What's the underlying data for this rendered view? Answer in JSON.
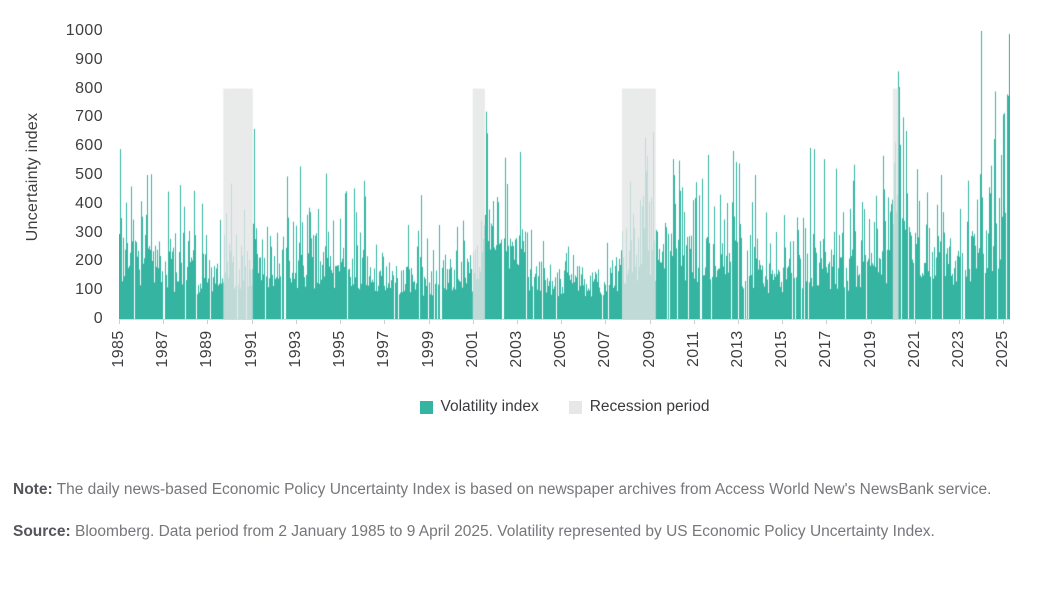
{
  "colors": {
    "series": "#35b4a1",
    "recession_overlay": "rgba(228,229,229,0.8)",
    "recession_swatch": "#e6e7e7",
    "axis_text": "#3e3f42",
    "axis_line": "#d9d9d9",
    "tick_mark": "#cfcfcf",
    "note_text": "#76777b",
    "note_label_color": "#54555a",
    "background": "#ffffff"
  },
  "chart_data": {
    "type": "bar",
    "title": "",
    "description": "Daily news-based US Economic Policy Uncertainty Index, 2 January 1985 to 9 April 2025, rendered as dense 1px vertical bars with recession periods shaded to 800",
    "ylabel": "Uncertainty index",
    "xlabel": "",
    "ylim": [
      0,
      1000
    ],
    "y_ticks": [
      1000,
      900,
      800,
      700,
      600,
      500,
      400,
      300,
      200,
      100,
      0
    ],
    "x_range": [
      1985,
      2025.3
    ],
    "x_tick_years": [
      1985,
      1987,
      1989,
      1991,
      1993,
      1995,
      1997,
      1999,
      2001,
      2003,
      2005,
      2007,
      2009,
      2011,
      2013,
      2015,
      2017,
      2019,
      2021,
      2023,
      2025
    ],
    "legend": [
      {
        "label": "Volatility index",
        "swatch": "series"
      },
      {
        "label": "Recession period",
        "swatch": "recession_swatch"
      }
    ],
    "grid": false,
    "legend_position": "bottom-center",
    "recession_top": 800,
    "recessions": [
      {
        "start": 1989.72,
        "end": 1991.05
      },
      {
        "start": 2001.0,
        "end": 2001.55
      },
      {
        "start": 2007.75,
        "end": 2009.28
      },
      {
        "start": 2020.0,
        "end": 2020.26
      }
    ],
    "envelope": [
      [
        1985.0,
        240,
        430
      ],
      [
        1985.5,
        225,
        400
      ],
      [
        1986.0,
        215,
        400
      ],
      [
        1987.0,
        200,
        380
      ],
      [
        1988.0,
        175,
        310
      ],
      [
        1989.0,
        165,
        300
      ],
      [
        1990.0,
        180,
        330
      ],
      [
        1990.7,
        200,
        360
      ],
      [
        1991.3,
        215,
        390
      ],
      [
        1992.0,
        215,
        400
      ],
      [
        1993.0,
        210,
        390
      ],
      [
        1994.0,
        185,
        350
      ],
      [
        1995.0,
        175,
        330
      ],
      [
        1996.0,
        170,
        330
      ],
      [
        1997.0,
        150,
        280
      ],
      [
        1998.0,
        150,
        290
      ],
      [
        1999.0,
        145,
        270
      ],
      [
        2000.0,
        150,
        280
      ],
      [
        2001.0,
        190,
        340
      ],
      [
        2001.7,
        240,
        430
      ],
      [
        2002.5,
        240,
        440
      ],
      [
        2003.3,
        220,
        420
      ],
      [
        2004.0,
        160,
        290
      ],
      [
        2005.0,
        150,
        265
      ],
      [
        2006.0,
        140,
        250
      ],
      [
        2007.0,
        145,
        265
      ],
      [
        2007.8,
        200,
        360
      ],
      [
        2008.5,
        250,
        450
      ],
      [
        2009.0,
        260,
        460
      ],
      [
        2010.0,
        240,
        430
      ],
      [
        2011.0,
        245,
        450
      ],
      [
        2012.0,
        240,
        440
      ],
      [
        2013.0,
        215,
        390
      ],
      [
        2014.0,
        175,
        310
      ],
      [
        2015.0,
        170,
        310
      ],
      [
        2016.0,
        200,
        380
      ],
      [
        2017.0,
        195,
        350
      ],
      [
        2018.0,
        190,
        345
      ],
      [
        2019.0,
        210,
        380
      ],
      [
        2019.9,
        230,
        400
      ],
      [
        2020.15,
        420,
        700
      ],
      [
        2020.45,
        340,
        580
      ],
      [
        2021.0,
        240,
        420
      ],
      [
        2022.0,
        235,
        415
      ],
      [
        2023.0,
        225,
        420
      ],
      [
        2024.0,
        255,
        470
      ],
      [
        2024.6,
        300,
        560
      ],
      [
        2025.0,
        330,
        620
      ],
      [
        2025.35,
        360,
        660
      ]
    ],
    "major_spikes": [
      {
        "x": 1985.03,
        "value": 590
      },
      {
        "x": 1985.55,
        "value": 460
      },
      {
        "x": 1986.25,
        "value": 500
      },
      {
        "x": 1986.45,
        "value": 480
      },
      {
        "x": 1987.78,
        "value": 465
      },
      {
        "x": 1990.05,
        "value": 470
      },
      {
        "x": 1991.12,
        "value": 660
      },
      {
        "x": 1992.62,
        "value": 495
      },
      {
        "x": 1993.18,
        "value": 530
      },
      {
        "x": 1994.38,
        "value": 505
      },
      {
        "x": 1996.08,
        "value": 480
      },
      {
        "x": 1998.65,
        "value": 430
      },
      {
        "x": 2001.58,
        "value": 720
      },
      {
        "x": 2001.64,
        "value": 645
      },
      {
        "x": 2002.48,
        "value": 560
      },
      {
        "x": 2003.15,
        "value": 580
      },
      {
        "x": 2008.12,
        "value": 475
      },
      {
        "x": 2008.78,
        "value": 630
      },
      {
        "x": 2008.9,
        "value": 565
      },
      {
        "x": 2010.35,
        "value": 550
      },
      {
        "x": 2011.62,
        "value": 570
      },
      {
        "x": 2012.92,
        "value": 545
      },
      {
        "x": 2013.05,
        "value": 540
      },
      {
        "x": 2013.75,
        "value": 500
      },
      {
        "x": 2016.45,
        "value": 590
      },
      {
        "x": 2016.9,
        "value": 555
      },
      {
        "x": 2018.2,
        "value": 480
      },
      {
        "x": 2019.62,
        "value": 450
      },
      {
        "x": 2020.22,
        "value": 860
      },
      {
        "x": 2020.28,
        "value": 805
      },
      {
        "x": 2020.46,
        "value": 700
      },
      {
        "x": 2020.6,
        "value": 620
      },
      {
        "x": 2021.1,
        "value": 520
      },
      {
        "x": 2022.2,
        "value": 500
      },
      {
        "x": 2024.0,
        "value": 1005
      },
      {
        "x": 2024.6,
        "value": 790
      },
      {
        "x": 2024.97,
        "value": 710
      },
      {
        "x": 2025.15,
        "value": 780
      },
      {
        "x": 2025.27,
        "value": 990
      }
    ],
    "seed": 20250409
  },
  "notes": {
    "note_label": "Note:",
    "note_text": " The daily news-based Economic Policy Uncertainty Index is based on newspaper archives from Access World New's NewsBank service.",
    "source_label": "Source:",
    "source_text": " Bloomberg. Data period from 2 January 1985 to 9 April 2025. Volatility represented by US Economic Policy Uncertainty Index."
  }
}
